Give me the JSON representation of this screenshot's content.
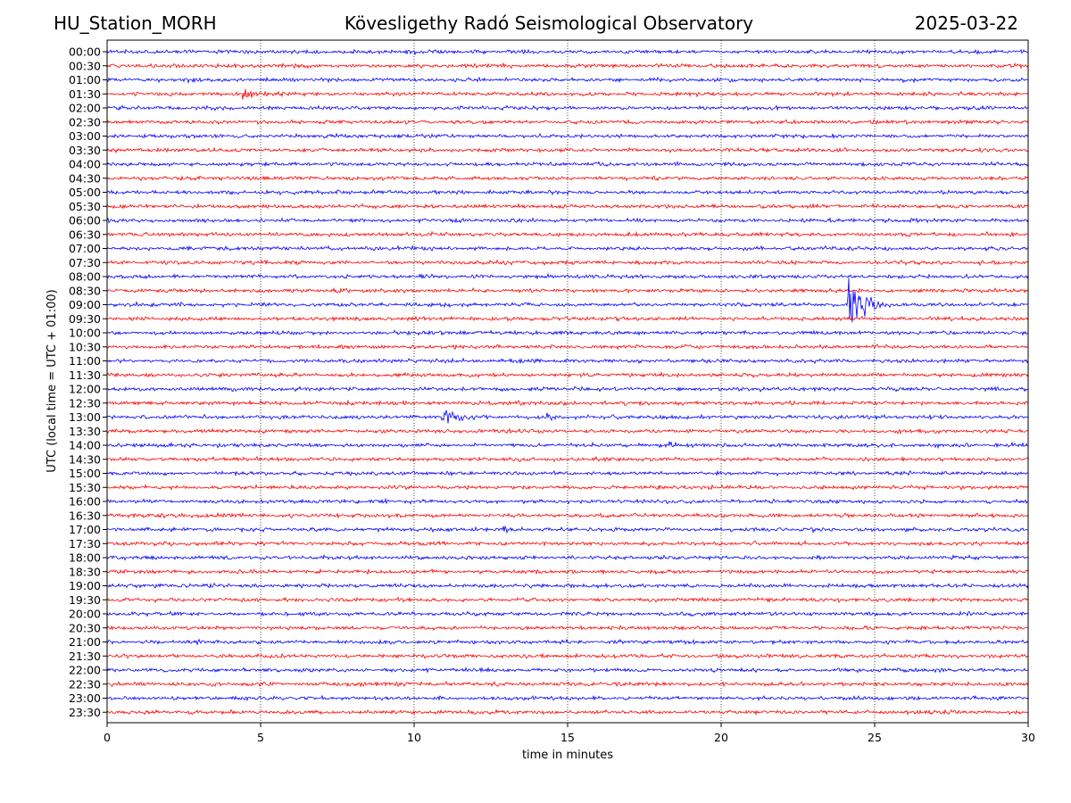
{
  "header": {
    "station": "HU_Station_MORH",
    "title": "Kövesligethy Radó Seismological Observatory",
    "date": "2025-03-22"
  },
  "chart_data": {
    "type": "line",
    "title": "Kövesligethy Radó Seismological Observatory",
    "xlabel": "time in minutes",
    "ylabel": "UTC (local time = UTC + 01:00)",
    "xlim": [
      0,
      30
    ],
    "x_ticks": [
      0,
      5,
      10,
      15,
      20,
      25,
      30
    ],
    "grid": "vertical dotted at x ticks",
    "colors": {
      "even_row": "#0000ff",
      "odd_row": "#ff0000"
    },
    "rows": [
      "00:00",
      "00:30",
      "01:00",
      "01:30",
      "02:00",
      "02:30",
      "03:00",
      "03:30",
      "04:00",
      "04:30",
      "05:00",
      "05:30",
      "06:00",
      "06:30",
      "07:00",
      "07:30",
      "08:00",
      "08:30",
      "09:00",
      "09:30",
      "10:00",
      "10:30",
      "11:00",
      "11:30",
      "12:00",
      "12:30",
      "13:00",
      "13:30",
      "14:00",
      "14:30",
      "15:00",
      "15:30",
      "16:00",
      "16:30",
      "17:00",
      "17:30",
      "18:00",
      "18:30",
      "19:00",
      "19:30",
      "20:00",
      "20:30",
      "21:00",
      "21:30",
      "22:00",
      "22:30",
      "23:00",
      "23:30"
    ],
    "events": [
      {
        "row": "01:30",
        "start_min": 4.4,
        "duration_min": 3.5,
        "peak_amplitude": 0.35
      },
      {
        "row": "09:00",
        "start_min": 24.1,
        "duration_min": 1.5,
        "peak_amplitude": 2.2
      },
      {
        "row": "13:00",
        "start_min": 10.9,
        "duration_min": 2.5,
        "peak_amplitude": 0.45
      },
      {
        "row": "13:00",
        "start_min": 14.3,
        "duration_min": 0.8,
        "peak_amplitude": 0.45
      },
      {
        "row": "14:00",
        "start_min": 18.3,
        "duration_min": 0.6,
        "peak_amplitude": 0.45
      },
      {
        "row": "17:00",
        "start_min": 12.9,
        "duration_min": 0.6,
        "peak_amplitude": 0.3
      }
    ]
  }
}
